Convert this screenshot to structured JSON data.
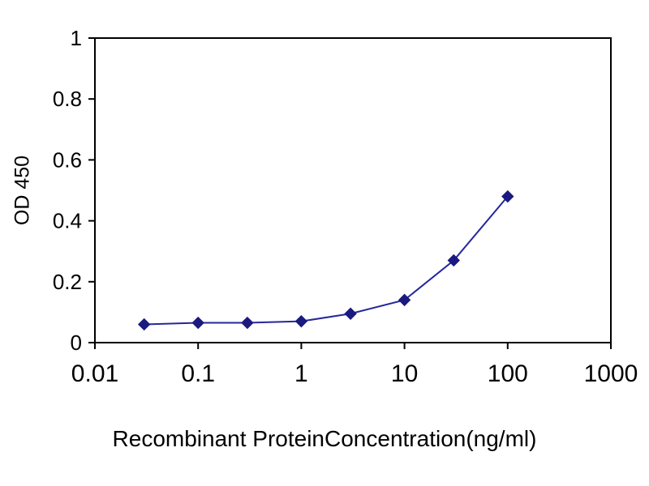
{
  "chart_data": {
    "type": "line",
    "title": "",
    "xlabel": "Recombinant ProteinConcentration(ng/ml)",
    "ylabel": "OD 450",
    "x_scale": "log",
    "xlim": [
      0.01,
      1000
    ],
    "ylim": [
      0,
      1
    ],
    "x_ticks": [
      "0.01",
      "0.1",
      "1",
      "10",
      "100",
      "1000"
    ],
    "y_ticks": [
      "0",
      "0.2",
      "0.4",
      "0.6",
      "0.8",
      "1"
    ],
    "grid": false,
    "legend": false,
    "x": [
      0.03,
      0.1,
      0.3,
      1,
      3,
      10,
      30,
      100
    ],
    "series": [
      {
        "name": "OD 450",
        "values": [
          0.06,
          0.065,
          0.065,
          0.07,
          0.095,
          0.14,
          0.27,
          0.48
        ]
      }
    ],
    "line_color": "#26269b",
    "marker": "diamond",
    "marker_color": "#1a1a80",
    "frame_color": "#000000",
    "text_color": "#000000"
  }
}
